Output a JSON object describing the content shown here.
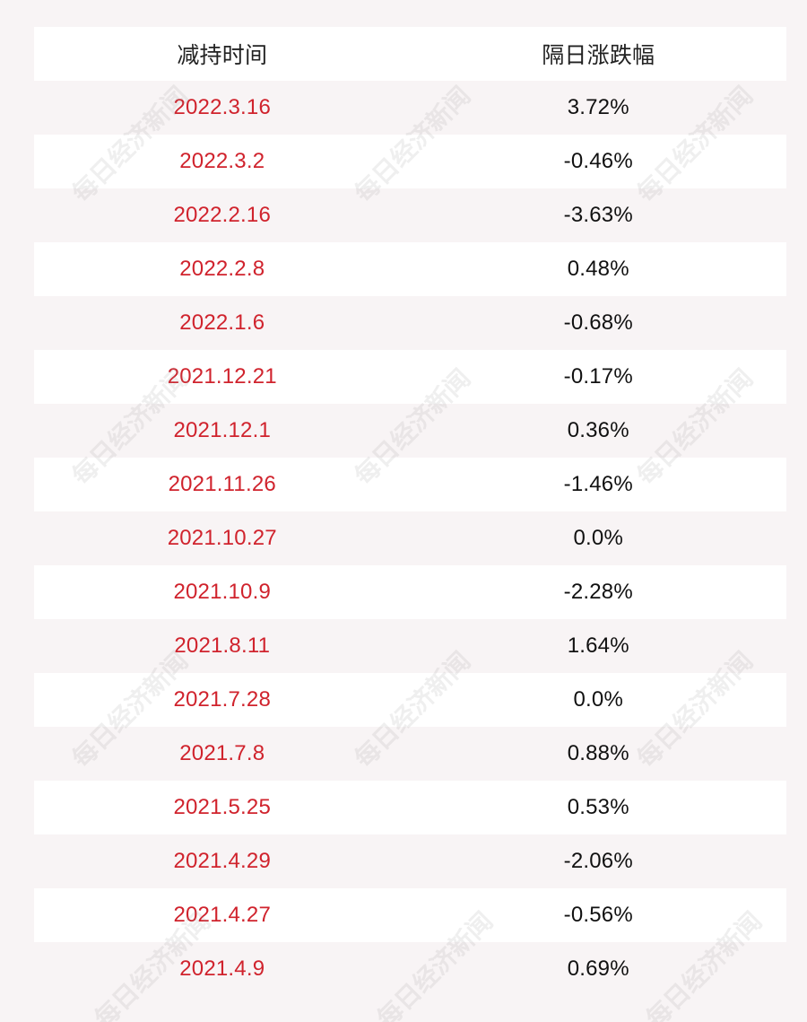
{
  "table": {
    "headers": {
      "date": "减持时间",
      "change": "隔日涨跌幅"
    },
    "rows": [
      {
        "date": "2022.3.16",
        "change": "3.72%"
      },
      {
        "date": "2022.3.2",
        "change": "-0.46%"
      },
      {
        "date": "2022.2.16",
        "change": "-3.63%"
      },
      {
        "date": "2022.2.8",
        "change": "0.48%"
      },
      {
        "date": "2022.1.6",
        "change": "-0.68%"
      },
      {
        "date": "2021.12.21",
        "change": "-0.17%"
      },
      {
        "date": "2021.12.1",
        "change": "0.36%"
      },
      {
        "date": "2021.11.26",
        "change": "-1.46%"
      },
      {
        "date": "2021.10.27",
        "change": "0.0%"
      },
      {
        "date": "2021.10.9",
        "change": "-2.28%"
      },
      {
        "date": "2021.8.11",
        "change": "1.64%"
      },
      {
        "date": "2021.7.28",
        "change": "0.0%"
      },
      {
        "date": "2021.7.8",
        "change": "0.88%"
      },
      {
        "date": "2021.5.25",
        "change": "0.53%"
      },
      {
        "date": "2021.4.29",
        "change": "-2.06%"
      },
      {
        "date": "2021.4.27",
        "change": "-0.56%"
      },
      {
        "date": "2021.4.9",
        "change": "0.69%"
      }
    ]
  },
  "watermark": {
    "text": "每日经济新闻"
  },
  "colors": {
    "date_text": "#d0232d",
    "change_text": "#111111",
    "row_white": "#ffffff",
    "row_tint": "#f8f4f5"
  }
}
